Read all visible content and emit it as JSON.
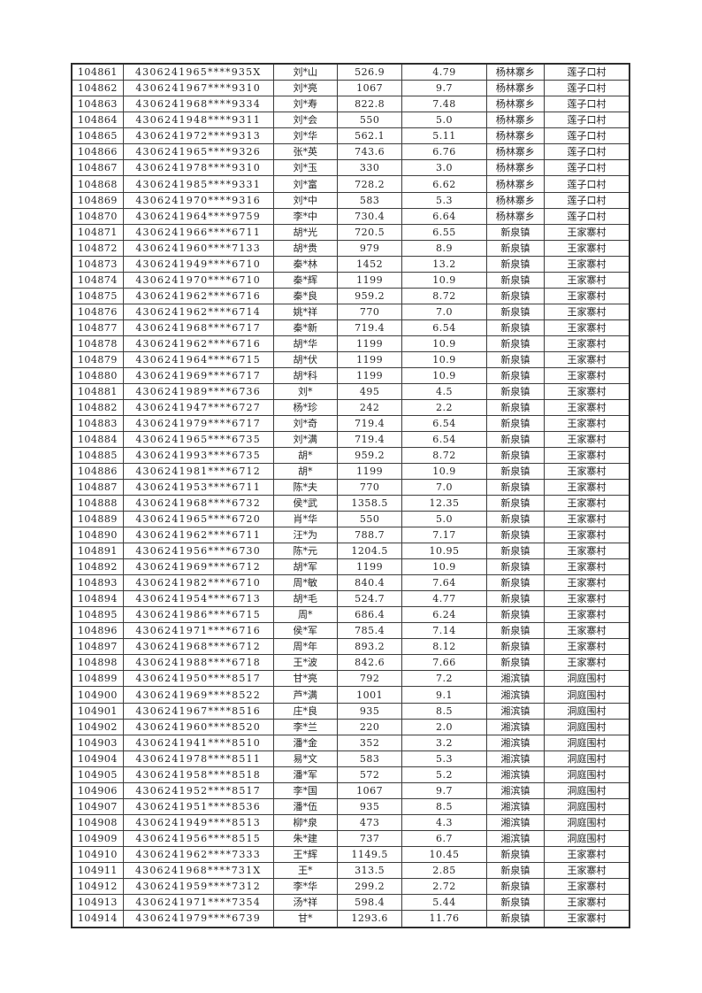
{
  "page": {
    "background_color": "#ffffff",
    "text_color": "#262626",
    "table_border_color": "#2e2e2e"
  },
  "table": {
    "rows": [
      [
        "104861",
        "4306241965****935X",
        "刘*山",
        "526.9",
        "4.79",
        "杨林寨乡",
        "莲子口村"
      ],
      [
        "104862",
        "4306241967****9310",
        "刘*亮",
        "1067",
        "9.7",
        "杨林寨乡",
        "莲子口村"
      ],
      [
        "104863",
        "4306241968****9334",
        "刘*寿",
        "822.8",
        "7.48",
        "杨林寨乡",
        "莲子口村"
      ],
      [
        "104864",
        "4306241948****9311",
        "刘*会",
        "550",
        "5.0",
        "杨林寨乡",
        "莲子口村"
      ],
      [
        "104865",
        "4306241972****9313",
        "刘*华",
        "562.1",
        "5.11",
        "杨林寨乡",
        "莲子口村"
      ],
      [
        "104866",
        "4306241965****9326",
        "张*英",
        "743.6",
        "6.76",
        "杨林寨乡",
        "莲子口村"
      ],
      [
        "104867",
        "4306241978****9310",
        "刘*玉",
        "330",
        "3.0",
        "杨林寨乡",
        "莲子口村"
      ],
      [
        "104868",
        "4306241985****9331",
        "刘*富",
        "728.2",
        "6.62",
        "杨林寨乡",
        "莲子口村"
      ],
      [
        "104869",
        "4306241970****9316",
        "刘*中",
        "583",
        "5.3",
        "杨林寨乡",
        "莲子口村"
      ],
      [
        "104870",
        "4306241964****9759",
        "李*中",
        "730.4",
        "6.64",
        "杨林寨乡",
        "莲子口村"
      ],
      [
        "104871",
        "4306241966****6711",
        "胡*光",
        "720.5",
        "6.55",
        "新泉镇",
        "王家寨村"
      ],
      [
        "104872",
        "4306241960****7133",
        "胡*贵",
        "979",
        "8.9",
        "新泉镇",
        "王家寨村"
      ],
      [
        "104873",
        "4306241949****6710",
        "秦*林",
        "1452",
        "13.2",
        "新泉镇",
        "王家寨村"
      ],
      [
        "104874",
        "4306241970****6710",
        "秦*辉",
        "1199",
        "10.9",
        "新泉镇",
        "王家寨村"
      ],
      [
        "104875",
        "4306241962****6716",
        "秦*良",
        "959.2",
        "8.72",
        "新泉镇",
        "王家寨村"
      ],
      [
        "104876",
        "4306241962****6714",
        "姚*祥",
        "770",
        "7.0",
        "新泉镇",
        "王家寨村"
      ],
      [
        "104877",
        "4306241968****6717",
        "秦*新",
        "719.4",
        "6.54",
        "新泉镇",
        "王家寨村"
      ],
      [
        "104878",
        "4306241962****6716",
        "胡*华",
        "1199",
        "10.9",
        "新泉镇",
        "王家寨村"
      ],
      [
        "104879",
        "4306241964****6715",
        "胡*伏",
        "1199",
        "10.9",
        "新泉镇",
        "王家寨村"
      ],
      [
        "104880",
        "4306241969****6717",
        "胡*科",
        "1199",
        "10.9",
        "新泉镇",
        "王家寨村"
      ],
      [
        "104881",
        "4306241989****6736",
        "刘*",
        "495",
        "4.5",
        "新泉镇",
        "王家寨村"
      ],
      [
        "104882",
        "4306241947****6727",
        "杨*珍",
        "242",
        "2.2",
        "新泉镇",
        "王家寨村"
      ],
      [
        "104883",
        "4306241979****6717",
        "刘*奇",
        "719.4",
        "6.54",
        "新泉镇",
        "王家寨村"
      ],
      [
        "104884",
        "4306241965****6735",
        "刘*满",
        "719.4",
        "6.54",
        "新泉镇",
        "王家寨村"
      ],
      [
        "104885",
        "4306241993****6735",
        "胡*",
        "959.2",
        "8.72",
        "新泉镇",
        "王家寨村"
      ],
      [
        "104886",
        "4306241981****6712",
        "胡*",
        "1199",
        "10.9",
        "新泉镇",
        "王家寨村"
      ],
      [
        "104887",
        "4306241953****6711",
        "陈*夫",
        "770",
        "7.0",
        "新泉镇",
        "王家寨村"
      ],
      [
        "104888",
        "4306241968****6732",
        "侯*武",
        "1358.5",
        "12.35",
        "新泉镇",
        "王家寨村"
      ],
      [
        "104889",
        "4306241965****6720",
        "肖*华",
        "550",
        "5.0",
        "新泉镇",
        "王家寨村"
      ],
      [
        "104890",
        "4306241962****6711",
        "汪*为",
        "788.7",
        "7.17",
        "新泉镇",
        "王家寨村"
      ],
      [
        "104891",
        "4306241956****6730",
        "陈*元",
        "1204.5",
        "10.95",
        "新泉镇",
        "王家寨村"
      ],
      [
        "104892",
        "4306241969****6712",
        "胡*军",
        "1199",
        "10.9",
        "新泉镇",
        "王家寨村"
      ],
      [
        "104893",
        "4306241982****6710",
        "周*敏",
        "840.4",
        "7.64",
        "新泉镇",
        "王家寨村"
      ],
      [
        "104894",
        "4306241954****6713",
        "胡*毛",
        "524.7",
        "4.77",
        "新泉镇",
        "王家寨村"
      ],
      [
        "104895",
        "4306241986****6715",
        "周*",
        "686.4",
        "6.24",
        "新泉镇",
        "王家寨村"
      ],
      [
        "104896",
        "4306241971****6716",
        "侯*军",
        "785.4",
        "7.14",
        "新泉镇",
        "王家寨村"
      ],
      [
        "104897",
        "4306241968****6712",
        "周*年",
        "893.2",
        "8.12",
        "新泉镇",
        "王家寨村"
      ],
      [
        "104898",
        "4306241988****6718",
        "王*波",
        "842.6",
        "7.66",
        "新泉镇",
        "王家寨村"
      ],
      [
        "104899",
        "4306241950****8517",
        "甘*亮",
        "792",
        "7.2",
        "湘滨镇",
        "洞庭围村"
      ],
      [
        "104900",
        "4306241969****8522",
        "芦*满",
        "1001",
        "9.1",
        "湘滨镇",
        "洞庭围村"
      ],
      [
        "104901",
        "4306241967****8516",
        "庄*良",
        "935",
        "8.5",
        "湘滨镇",
        "洞庭围村"
      ],
      [
        "104902",
        "4306241960****8520",
        "李*兰",
        "220",
        "2.0",
        "湘滨镇",
        "洞庭围村"
      ],
      [
        "104903",
        "4306241941****8510",
        "潘*金",
        "352",
        "3.2",
        "湘滨镇",
        "洞庭围村"
      ],
      [
        "104904",
        "4306241978****8511",
        "易*文",
        "583",
        "5.3",
        "湘滨镇",
        "洞庭围村"
      ],
      [
        "104905",
        "4306241958****8518",
        "潘*军",
        "572",
        "5.2",
        "湘滨镇",
        "洞庭围村"
      ],
      [
        "104906",
        "4306241952****8517",
        "李*国",
        "1067",
        "9.7",
        "湘滨镇",
        "洞庭围村"
      ],
      [
        "104907",
        "4306241951****8536",
        "潘*伍",
        "935",
        "8.5",
        "湘滨镇",
        "洞庭围村"
      ],
      [
        "104908",
        "4306241949****8513",
        "柳*泉",
        "473",
        "4.3",
        "湘滨镇",
        "洞庭围村"
      ],
      [
        "104909",
        "4306241956****8515",
        "朱*建",
        "737",
        "6.7",
        "湘滨镇",
        "洞庭围村"
      ],
      [
        "104910",
        "4306241962****7333",
        "王*辉",
        "1149.5",
        "10.45",
        "新泉镇",
        "王家寨村"
      ],
      [
        "104911",
        "4306241968****731X",
        "王*",
        "313.5",
        "2.85",
        "新泉镇",
        "王家寨村"
      ],
      [
        "104912",
        "4306241959****7312",
        "李*华",
        "299.2",
        "2.72",
        "新泉镇",
        "王家寨村"
      ],
      [
        "104913",
        "4306241971****7354",
        "汤*祥",
        "598.4",
        "5.44",
        "新泉镇",
        "王家寨村"
      ],
      [
        "104914",
        "4306241979****6739",
        "甘*",
        "1293.6",
        "11.76",
        "新泉镇",
        "王家寨村"
      ]
    ]
  }
}
